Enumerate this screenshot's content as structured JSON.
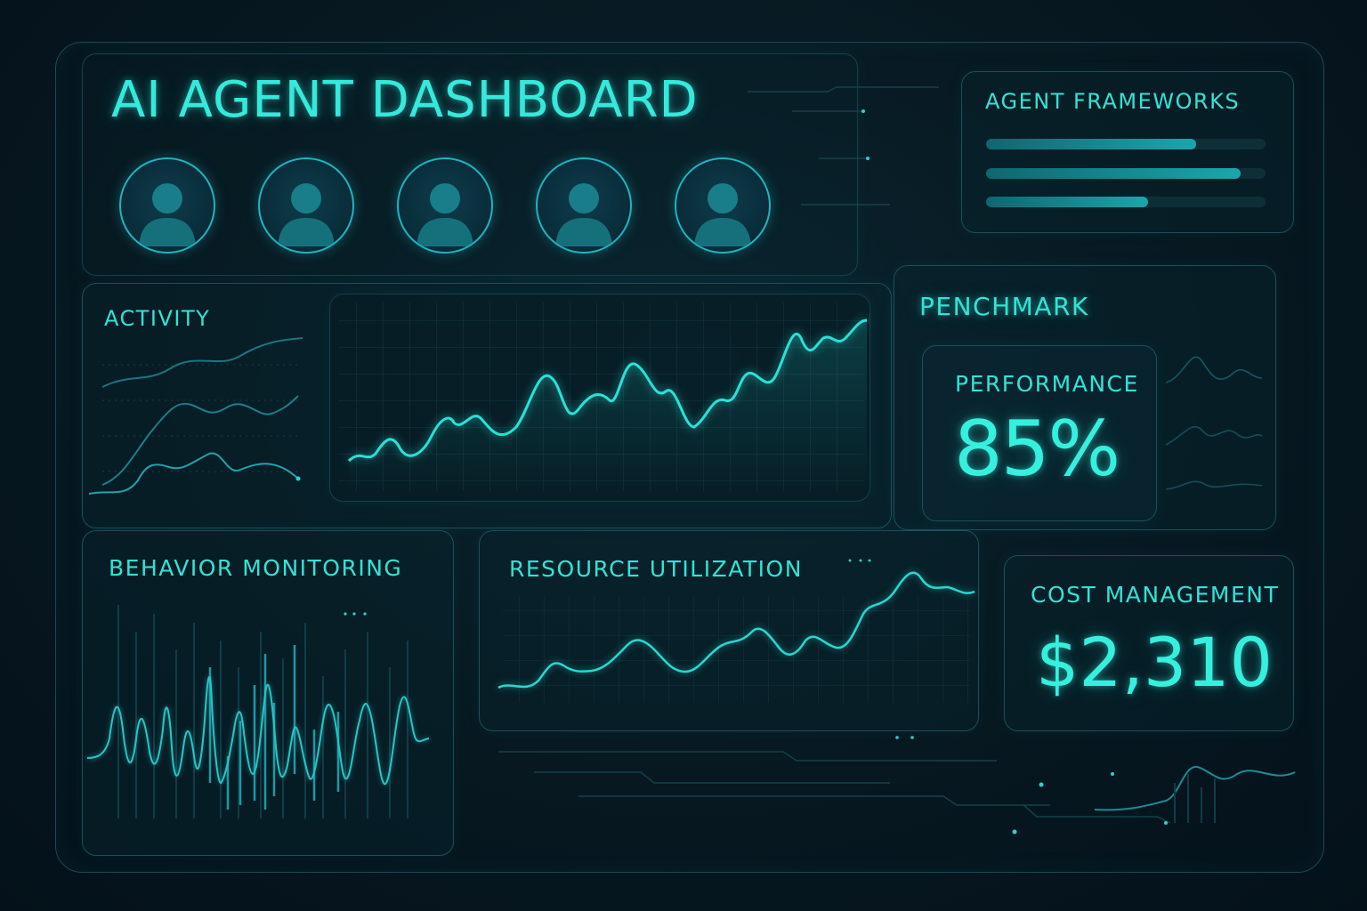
{
  "header": {
    "title": "AI AGENT DASHBOARD"
  },
  "agents": [
    {
      "icon": "user-avatar-icon"
    },
    {
      "icon": "user-avatar-icon"
    },
    {
      "icon": "user-avatar-icon"
    },
    {
      "icon": "user-avatar-icon"
    },
    {
      "icon": "user-avatar-icon"
    }
  ],
  "frameworks": {
    "label": "AGENT FRAMEWORKS",
    "bars": [
      {
        "level": 0.75
      },
      {
        "level": 0.91
      },
      {
        "level": 0.58
      }
    ]
  },
  "activity": {
    "label": "ACTIVITY"
  },
  "benchmark": {
    "label": "PENCHMARK",
    "performance_label": "PERFORMANCE",
    "performance_value": "85%"
  },
  "behavior": {
    "label": "BEHAVIOR MONITORING"
  },
  "resources": {
    "label": "RESOURCE UTILIZATION"
  },
  "cost": {
    "label": "COST MANAGEMENT",
    "value": "$2,310"
  },
  "colors": {
    "accent": "#2ee6d8",
    "background": "#071820",
    "panel_border": "#1d4f5a"
  }
}
